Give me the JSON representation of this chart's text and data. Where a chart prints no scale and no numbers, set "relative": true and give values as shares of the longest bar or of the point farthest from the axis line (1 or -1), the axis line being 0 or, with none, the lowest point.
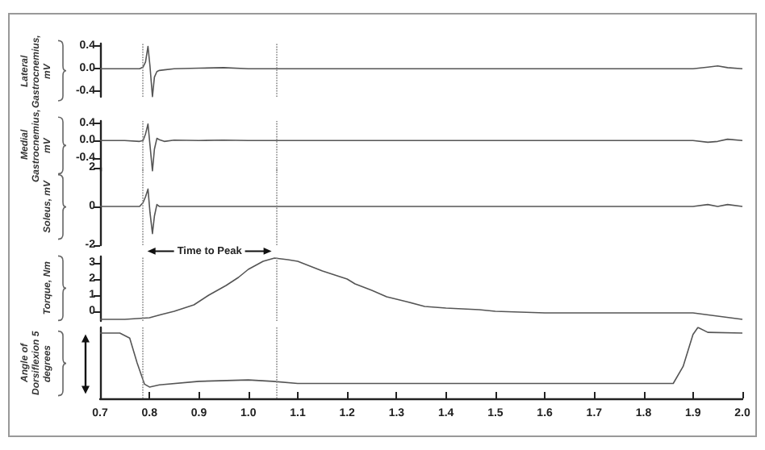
{
  "chart_data": [
    {
      "type": "line",
      "ylabel": "Lateral Gastrocnemius, mV",
      "xlim": [
        0.7,
        2.0
      ],
      "ylim": [
        -0.5,
        0.45
      ],
      "yticks": [
        0.4,
        {
          "value": 0,
          "label": "0.0"
        },
        -0.4
      ],
      "tick_labels": "y",
      "grid": false,
      "marker": "none",
      "color": "#555555",
      "x": [
        0.7,
        0.75,
        0.78,
        0.787,
        0.792,
        0.797,
        0.801,
        0.806,
        0.81,
        0.815,
        0.82,
        0.83,
        0.85,
        0.9,
        0.95,
        1.0,
        1.05,
        1.1,
        1.2,
        1.3,
        1.4,
        1.5,
        1.6,
        1.7,
        1.8,
        1.9,
        1.93,
        1.95,
        1.97,
        2.0
      ],
      "values": [
        0,
        0,
        0,
        0.03,
        0.12,
        0.4,
        0.05,
        -0.5,
        -0.15,
        -0.05,
        -0.03,
        -0.02,
        0,
        0.01,
        0.02,
        0,
        0,
        0,
        0,
        0,
        0,
        0,
        0,
        0,
        0,
        0,
        0.03,
        0.05,
        0.02,
        0
      ],
      "ref_lines": [
        {
          "axis": "x",
          "value": 0.786,
          "line_style": "dotted",
          "color": "#888888"
        },
        {
          "axis": "x",
          "value": 1.057,
          "line_style": "dotted",
          "color": "#888888"
        }
      ]
    },
    {
      "type": "line",
      "ylabel": "Medial Gastrocnemius, mV",
      "xlim": [
        0.7,
        2.0
      ],
      "ylim": [
        -0.7,
        0.45
      ],
      "yticks": [
        0.4,
        {
          "value": 0,
          "label": "0.0"
        },
        -0.4
      ],
      "tick_labels": "y",
      "grid": false,
      "marker": "none",
      "color": "#555555",
      "x": [
        0.7,
        0.75,
        0.78,
        0.787,
        0.792,
        0.797,
        0.801,
        0.806,
        0.81,
        0.815,
        0.82,
        0.83,
        0.85,
        0.9,
        0.95,
        1.0,
        1.05,
        1.1,
        1.2,
        1.3,
        1.4,
        1.5,
        1.6,
        1.7,
        1.8,
        1.9,
        1.93,
        1.95,
        1.97,
        2.0
      ],
      "values": [
        0,
        0,
        -0.02,
        0,
        0.15,
        0.38,
        -0.1,
        -0.7,
        -0.2,
        0.05,
        0.02,
        -0.02,
        0.01,
        0,
        0.01,
        0,
        0,
        0,
        0,
        0,
        0,
        0,
        0,
        0,
        0,
        0,
        -0.04,
        -0.02,
        0.03,
        0
      ],
      "ref_lines": [
        {
          "axis": "x",
          "value": 0.786,
          "line_style": "dotted",
          "color": "#888888"
        },
        {
          "axis": "x",
          "value": 1.057,
          "line_style": "dotted",
          "color": "#888888"
        }
      ]
    },
    {
      "type": "line",
      "ylabel": "Soleus, mV",
      "xlim": [
        0.7,
        2.0
      ],
      "ylim": [
        -2,
        2
      ],
      "yticks": [
        2,
        0,
        -2
      ],
      "tick_labels": "y",
      "grid": false,
      "marker": "none",
      "color": "#555555",
      "x": [
        0.7,
        0.75,
        0.78,
        0.787,
        0.792,
        0.797,
        0.801,
        0.806,
        0.81,
        0.815,
        0.82,
        0.83,
        0.85,
        0.9,
        0.95,
        1.0,
        1.05,
        1.1,
        1.2,
        1.3,
        1.4,
        1.5,
        1.6,
        1.7,
        1.8,
        1.9,
        1.93,
        1.95,
        1.97,
        2.0
      ],
      "values": [
        0,
        0,
        0,
        0.2,
        0.5,
        0.9,
        -0.3,
        -1.4,
        -0.5,
        0.1,
        0,
        0,
        0,
        0,
        0,
        0,
        0,
        0,
        0,
        0,
        0,
        0,
        0,
        0,
        0,
        0,
        0.1,
        0,
        0.1,
        0
      ],
      "ref_lines": [
        {
          "axis": "x",
          "value": 0.786,
          "line_style": "dotted",
          "color": "#888888"
        },
        {
          "axis": "x",
          "value": 1.057,
          "line_style": "dotted",
          "color": "#888888"
        }
      ]
    },
    {
      "type": "line",
      "ylabel": "Torque, Nm",
      "xlim": [
        0.7,
        2.0
      ],
      "ylim": [
        -0.6,
        3.4
      ],
      "yticks": [
        3,
        2,
        1,
        0
      ],
      "tick_labels": "y",
      "grid": false,
      "marker": "none",
      "color": "#555555",
      "annotations": [
        "Time to Peak"
      ],
      "x": [
        0.7,
        0.75,
        0.8,
        0.824,
        0.85,
        0.89,
        0.92,
        0.955,
        0.98,
        1.0,
        1.03,
        1.053,
        1.08,
        1.1,
        1.15,
        1.2,
        1.216,
        1.25,
        1.28,
        1.32,
        1.357,
        1.4,
        1.467,
        1.5,
        1.6,
        1.7,
        1.8,
        1.9,
        1.95,
        2.0
      ],
      "values": [
        -0.5,
        -0.5,
        -0.4,
        -0.2,
        0,
        0.4,
        1,
        1.6,
        2.1,
        2.6,
        3.1,
        3.3,
        3.2,
        3.1,
        2.5,
        2,
        1.7,
        1.3,
        0.9,
        0.6,
        0.3,
        0.2,
        0.1,
        0,
        -0.1,
        -0.1,
        -0.1,
        -0.1,
        -0.3,
        -0.5
      ],
      "ref_lines": [
        {
          "axis": "x",
          "value": 0.786,
          "line_style": "dotted",
          "color": "#888888"
        },
        {
          "axis": "x",
          "value": 1.057,
          "line_style": "dotted",
          "color": "#888888"
        }
      ]
    },
    {
      "type": "line",
      "ylabel": "Angle of Dorsiflexion 5 degrees",
      "relative": true,
      "xlim": [
        0.7,
        2.0
      ],
      "xticks": [
        0.7,
        0.8,
        0.9,
        {
          "value": 1,
          "label": "1.0"
        },
        1.1,
        1.2,
        1.3,
        1.4,
        1.5,
        1.6,
        1.7,
        1.8,
        1.9,
        {
          "value": 2,
          "label": "2.0"
        }
      ],
      "tick_labels": "x",
      "grid": false,
      "marker": "none",
      "color": "#555555",
      "x": [
        0.7,
        0.74,
        0.76,
        0.775,
        0.79,
        0.8,
        0.82,
        0.9,
        1.0,
        1.05,
        1.1,
        1.3,
        1.5,
        1.7,
        1.86,
        1.88,
        1.9,
        1.91,
        1.93,
        2.0
      ],
      "values": [
        0.92,
        0.92,
        0.85,
        0.5,
        0.2,
        0.16,
        0.19,
        0.24,
        0.26,
        0.24,
        0.21,
        0.21,
        0.21,
        0.21,
        0.21,
        0.45,
        0.9,
        1.0,
        0.93,
        0.92
      ],
      "ref_lines": [
        {
          "axis": "x",
          "value": 0.786,
          "line_style": "dotted",
          "color": "#888888"
        },
        {
          "axis": "x",
          "value": 1.057,
          "line_style": "dotted",
          "color": "#888888"
        }
      ]
    }
  ]
}
